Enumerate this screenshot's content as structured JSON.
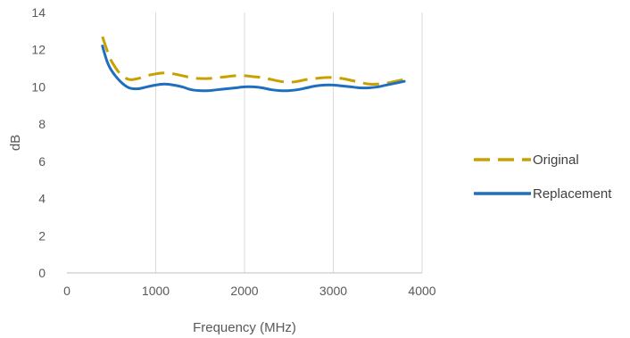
{
  "chart_data": {
    "type": "line",
    "xlabel": "Frequency (MHz)",
    "ylabel": "dB",
    "xlim": [
      0,
      4000
    ],
    "ylim": [
      0,
      14
    ],
    "x_ticks": [
      0,
      1000,
      2000,
      3000,
      4000
    ],
    "y_ticks": [
      0,
      2,
      4,
      6,
      8,
      10,
      12,
      14
    ],
    "grid": {
      "vertical": true,
      "horizontal": false
    },
    "legend_position": "right",
    "series": [
      {
        "name": "Original",
        "color": "#C9A000",
        "dash": "dashed",
        "x": [
          400,
          450,
          500,
          600,
          700,
          800,
          900,
          1000,
          1100,
          1200,
          1300,
          1400,
          1500,
          1600,
          1700,
          1800,
          1900,
          2000,
          2100,
          2200,
          2300,
          2400,
          2500,
          2600,
          2700,
          2800,
          2900,
          3000,
          3100,
          3200,
          3300,
          3400,
          3500,
          3600,
          3700,
          3800
        ],
        "y": [
          12.7,
          12.0,
          11.4,
          10.7,
          10.4,
          10.45,
          10.6,
          10.7,
          10.75,
          10.7,
          10.6,
          10.5,
          10.45,
          10.45,
          10.5,
          10.55,
          10.6,
          10.6,
          10.55,
          10.5,
          10.4,
          10.3,
          10.25,
          10.3,
          10.4,
          10.45,
          10.5,
          10.5,
          10.45,
          10.35,
          10.25,
          10.15,
          10.15,
          10.2,
          10.3,
          10.4
        ]
      },
      {
        "name": "Replacement",
        "color": "#1F6FC0",
        "dash": "solid",
        "x": [
          400,
          450,
          500,
          600,
          700,
          800,
          900,
          1000,
          1100,
          1200,
          1300,
          1400,
          1500,
          1600,
          1700,
          1800,
          1900,
          2000,
          2100,
          2200,
          2300,
          2400,
          2500,
          2600,
          2700,
          2800,
          2900,
          3000,
          3100,
          3200,
          3300,
          3400,
          3500,
          3600,
          3700,
          3800
        ],
        "y": [
          12.2,
          11.4,
          10.9,
          10.3,
          9.95,
          9.9,
          10.0,
          10.1,
          10.15,
          10.1,
          10.0,
          9.85,
          9.8,
          9.8,
          9.85,
          9.9,
          9.95,
          10.0,
          10.0,
          9.95,
          9.85,
          9.8,
          9.8,
          9.85,
          9.95,
          10.05,
          10.1,
          10.1,
          10.05,
          10.0,
          9.95,
          9.95,
          10.0,
          10.1,
          10.2,
          10.3
        ]
      }
    ]
  }
}
